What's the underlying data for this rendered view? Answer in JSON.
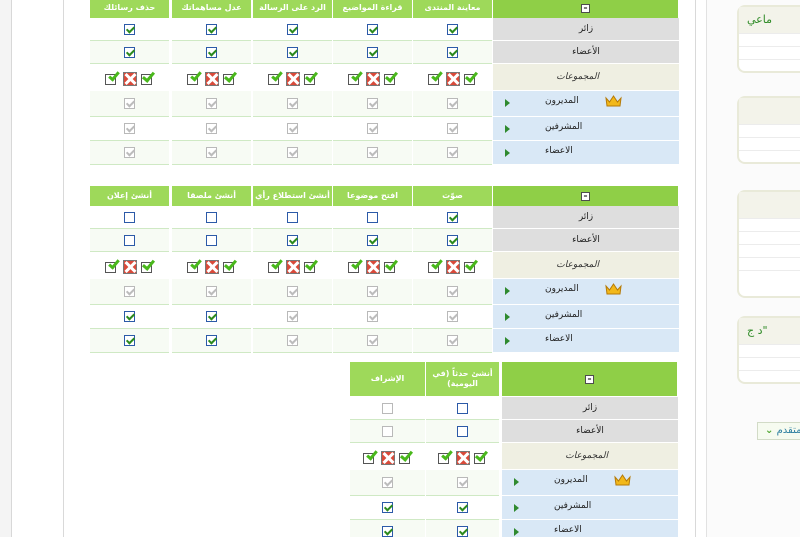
{
  "sidebar_panels": [
    {
      "title": "ماعي"
    },
    {
      "title": ""
    },
    {
      "title": ""
    },
    {
      "title": "د ج\""
    }
  ],
  "side_button": {
    "label": "متقدم"
  },
  "sections": [
    {
      "columns": [
        "معاينة المنتدى",
        "قراءة المواضيع",
        "الرد على الرسالة",
        "عدل مساهماتك",
        "حذف رسائلك"
      ],
      "rows": [
        {
          "label": "زائر",
          "type": "gray",
          "values": [
            1,
            1,
            1,
            1,
            1
          ]
        },
        {
          "label": "الأعضاء",
          "type": "gray",
          "values": [
            1,
            1,
            1,
            1,
            1
          ]
        },
        {
          "label": "المجموعات",
          "type": "beige"
        },
        {
          "label": "المديرون",
          "type": "blue",
          "crown": true,
          "values": [
            1,
            1,
            1,
            1,
            1
          ],
          "disabled": [
            1,
            1,
            1,
            1,
            1
          ]
        },
        {
          "label": "المشرفين",
          "type": "blue",
          "values": [
            1,
            1,
            1,
            1,
            1
          ],
          "disabled": [
            1,
            1,
            1,
            1,
            1
          ]
        },
        {
          "label": "الاعضاء",
          "type": "blue",
          "values": [
            1,
            1,
            1,
            1,
            1
          ],
          "disabled": [
            1,
            1,
            1,
            1,
            1
          ]
        }
      ]
    },
    {
      "columns": [
        "صوّت",
        "افتح موضوعا",
        "أنشئ استطلاع رأي",
        "أنشئ ملصقا",
        "أنشئ إعلان"
      ],
      "rows": [
        {
          "label": "زائر",
          "type": "gray",
          "values": [
            1,
            0,
            0,
            0,
            0
          ]
        },
        {
          "label": "الأعضاء",
          "type": "gray",
          "values": [
            1,
            1,
            1,
            0,
            0
          ]
        },
        {
          "label": "المجموعات",
          "type": "beige"
        },
        {
          "label": "المديرون",
          "type": "blue",
          "crown": true,
          "values": [
            1,
            1,
            1,
            1,
            1
          ],
          "disabled": [
            1,
            1,
            1,
            1,
            1
          ]
        },
        {
          "label": "المشرفين",
          "type": "blue",
          "values": [
            1,
            1,
            1,
            1,
            1
          ],
          "disabled": [
            1,
            1,
            1,
            0,
            0
          ]
        },
        {
          "label": "الاعضاء",
          "type": "blue",
          "values": [
            1,
            1,
            1,
            1,
            1
          ],
          "disabled": [
            1,
            1,
            1,
            0,
            0
          ]
        }
      ]
    },
    {
      "columns": [
        "أنشئ حدثاً (في اليومية)",
        "الإشراف"
      ],
      "rows": [
        {
          "label": "زائر",
          "type": "gray",
          "values": [
            0,
            0
          ],
          "disabled": [
            0,
            1
          ]
        },
        {
          "label": "الأعضاء",
          "type": "gray",
          "values": [
            0,
            0
          ],
          "disabled": [
            0,
            1
          ]
        },
        {
          "label": "المجموعات",
          "type": "beige"
        },
        {
          "label": "المديرون",
          "type": "blue",
          "crown": true,
          "values": [
            1,
            1
          ],
          "disabled": [
            1,
            1
          ]
        },
        {
          "label": "المشرفين",
          "type": "blue",
          "values": [
            1,
            1
          ],
          "disabled": [
            0,
            0
          ]
        },
        {
          "label": "الاعضاء",
          "type": "blue",
          "values": [
            1,
            1
          ],
          "disabled": [
            0,
            0
          ]
        }
      ]
    }
  ],
  "colors": {
    "header_green": "#9ed95a",
    "label_gray": "#dedede",
    "label_blue": "#d9e8f6",
    "label_beige": "#efefe2"
  }
}
